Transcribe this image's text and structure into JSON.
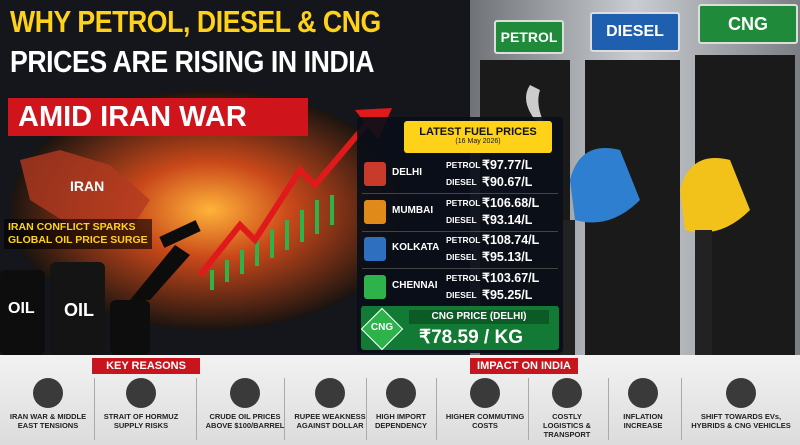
{
  "header": {
    "title_line1": "WHY PETROL, DIESEL & CNG",
    "title_line2": "PRICES ARE RISING IN INDIA",
    "banner": "AMID IRAN WAR"
  },
  "pumps": [
    "PETROL",
    "DIESEL",
    "CNG"
  ],
  "map_label": "IRAN",
  "callout": [
    "IRAN CONFLICT SPARKS",
    "GLOBAL OIL PRICE SURGE"
  ],
  "barrels": [
    "OIL",
    "OIL"
  ],
  "prices": {
    "title": "LATEST FUEL PRICES",
    "date": "(16 May 2026)",
    "cities": [
      {
        "name": "DELHI",
        "rows": [
          [
            "PETROL",
            "₹97.77/L"
          ],
          [
            "DIESEL",
            "₹90.67/L"
          ]
        ]
      },
      {
        "name": "MUMBAI",
        "rows": [
          [
            "PETROL",
            "₹106.68/L"
          ],
          [
            "DIESEL",
            "₹93.14/L"
          ]
        ]
      },
      {
        "name": "KOLKATA",
        "rows": [
          [
            "PETROL",
            "₹108.74/L"
          ],
          [
            "DIESEL",
            "₹95.13/L"
          ]
        ]
      },
      {
        "name": "CHENNAI",
        "rows": [
          [
            "PETROL",
            "₹103.67/L"
          ],
          [
            "DIESEL",
            "₹95.25/L"
          ]
        ]
      }
    ]
  },
  "cng": {
    "badge": "CNG",
    "title": "CNG PRICE (DELHI)",
    "price": "₹78.59 / KG"
  },
  "key_reasons": {
    "title": "KEY REASONS",
    "items": [
      "IRAN WAR & MIDDLE EAST TENSIONS",
      "STRAIT OF HORMUZ SUPPLY RISKS",
      "CRUDE OIL PRICES ABOVE $100/BARREL",
      "RUPEE WEAKNESS AGAINST DOLLAR",
      "HIGH IMPORT DEPENDENCY"
    ]
  },
  "impact": {
    "title": "IMPACT ON INDIA",
    "items": [
      "HIGHER COMMUTING COSTS",
      "COSTLY LOGISTICS & TRANSPORT",
      "INFLATION INCREASE",
      "SHIFT TOWARDS EVs, HYBRIDS & CNG VEHICLES"
    ]
  }
}
